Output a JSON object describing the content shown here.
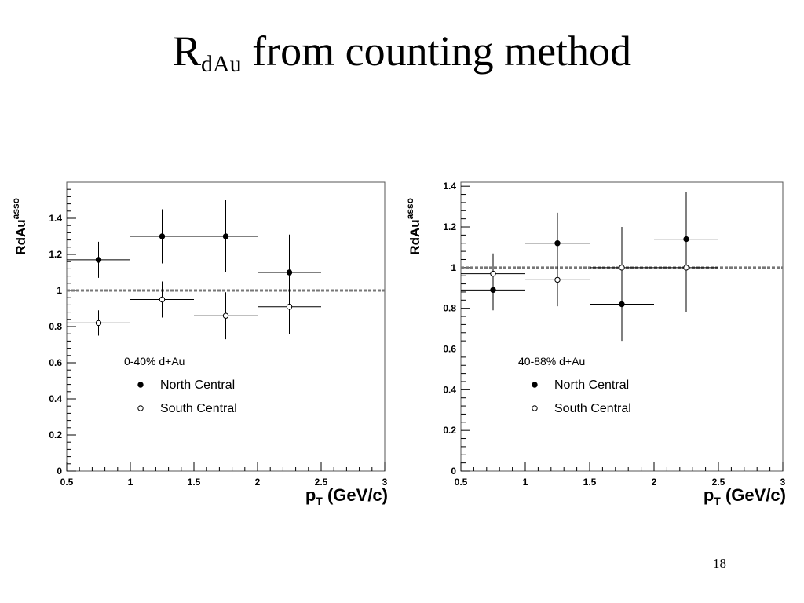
{
  "slide": {
    "title_main": "R",
    "title_sub": "dAu",
    "title_rest": " from counting method",
    "page_number": "18"
  },
  "colors": {
    "text": "#000000",
    "frame": "#555555",
    "reference_line": "#777777"
  },
  "chart_data": [
    {
      "type": "scatter",
      "title": "",
      "xlabel_main": "p",
      "xlabel_sub": "T",
      "xlabel_rest": " (GeV/c)",
      "ylabel_main": "RdAu",
      "ylabel_sup": "asso",
      "xlim": [
        0.5,
        3
      ],
      "ylim": [
        0,
        1.6
      ],
      "xticks": [
        0.5,
        1,
        1.5,
        2,
        2.5,
        3
      ],
      "xtick_labels": [
        "0.5",
        "1",
        "1.5",
        "2",
        "2.5",
        "3"
      ],
      "yticks": [
        0,
        0.2,
        0.4,
        0.6,
        0.8,
        1,
        1.2,
        1.4
      ],
      "ytick_labels": [
        "0",
        "0.2",
        "0.4",
        "0.6",
        "0.8",
        "1",
        "1.2",
        "1.4"
      ],
      "reference_line": 1,
      "grid": false,
      "legend_position": "bottom-left",
      "legend_title": "0-40% d+Au",
      "series": [
        {
          "name": "North Central",
          "marker": "filled",
          "x": [
            0.75,
            1.25,
            1.75,
            2.25
          ],
          "xerr": [
            0.25,
            0.25,
            0.25,
            0.25
          ],
          "y": [
            1.17,
            1.3,
            1.3,
            1.1
          ],
          "yerr_low": [
            0.1,
            0.15,
            0.2,
            0.24
          ],
          "yerr_high": [
            0.1,
            0.15,
            0.2,
            0.21
          ]
        },
        {
          "name": "South Central",
          "marker": "open",
          "x": [
            0.75,
            1.25,
            1.75,
            2.25
          ],
          "xerr": [
            0.25,
            0.25,
            0.25,
            0.25
          ],
          "y": [
            0.82,
            0.95,
            0.86,
            0.91
          ],
          "yerr_low": [
            0.07,
            0.1,
            0.13,
            0.15
          ],
          "yerr_high": [
            0.07,
            0.1,
            0.13,
            0.15
          ]
        }
      ]
    },
    {
      "type": "scatter",
      "title": "",
      "xlabel_main": "p",
      "xlabel_sub": "T",
      "xlabel_rest": " (GeV/c)",
      "ylabel_main": "RdAu",
      "ylabel_sup": "asso",
      "xlim": [
        0.5,
        3
      ],
      "ylim": [
        0,
        1.42
      ],
      "xticks": [
        0.5,
        1,
        1.5,
        2,
        2.5,
        3
      ],
      "xtick_labels": [
        "0.5",
        "1",
        "1.5",
        "2",
        "2.5",
        "3"
      ],
      "yticks": [
        0,
        0.2,
        0.4,
        0.6,
        0.8,
        1,
        1.2,
        1.4
      ],
      "ytick_labels": [
        "0",
        "0.2",
        "0.4",
        "0.6",
        "0.8",
        "1",
        "1.2",
        "1.4"
      ],
      "reference_line": 1,
      "grid": false,
      "legend_position": "bottom-left",
      "legend_title": "40-88% d+Au",
      "series": [
        {
          "name": "North Central",
          "marker": "filled",
          "x": [
            0.75,
            1.25,
            1.75,
            2.25
          ],
          "xerr": [
            0.25,
            0.25,
            0.25,
            0.25
          ],
          "y": [
            0.89,
            1.12,
            0.82,
            1.14
          ],
          "yerr_low": [
            0.1,
            0.13,
            0.18,
            0.36
          ],
          "yerr_high": [
            0.1,
            0.15,
            0.37,
            0.23
          ]
        },
        {
          "name": "South Central",
          "marker": "open",
          "x": [
            0.75,
            1.25,
            1.75,
            2.25
          ],
          "xerr": [
            0.25,
            0.25,
            0.25,
            0.25
          ],
          "y": [
            0.97,
            0.94,
            1.0,
            1.0
          ],
          "yerr_low": [
            0.1,
            0.13,
            0.2,
            0.22
          ],
          "yerr_high": [
            0.1,
            0.13,
            0.2,
            0.22
          ]
        }
      ]
    }
  ]
}
